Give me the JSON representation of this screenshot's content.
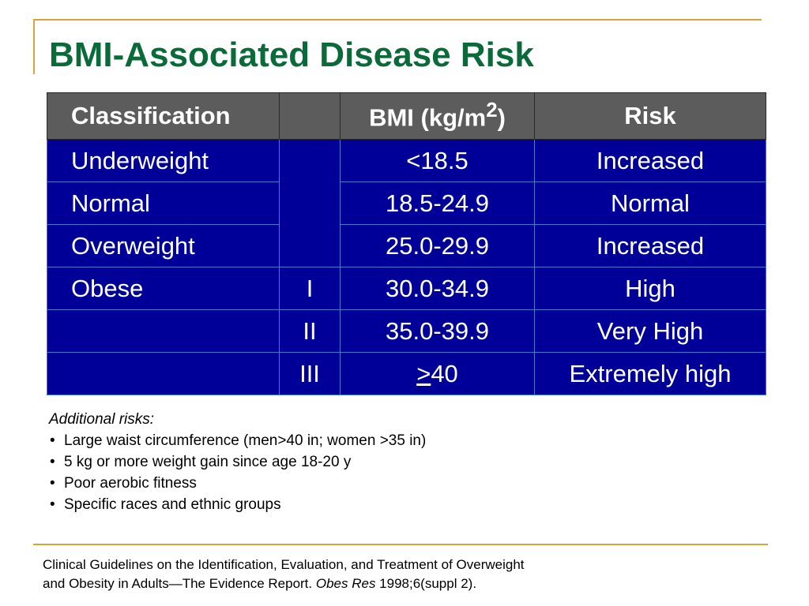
{
  "title": "BMI-Associated Disease Risk",
  "table": {
    "headers": {
      "classification": "Classification",
      "class": "",
      "bmi_prefix": "BMI (kg/m",
      "bmi_sup": "2",
      "bmi_suffix": ")",
      "risk": "Risk"
    },
    "rows": [
      {
        "classification": "Underweight",
        "class": "",
        "bmi": "<18.5",
        "risk": "Increased"
      },
      {
        "classification": "Normal",
        "class": "",
        "bmi": "18.5-24.9",
        "risk": "Normal"
      },
      {
        "classification": "Overweight",
        "class": "",
        "bmi": "25.0-29.9",
        "risk": "Increased"
      },
      {
        "classification": "Obese",
        "class": "I",
        "bmi": "30.0-34.9",
        "risk": "High"
      },
      {
        "classification": "",
        "class": "II",
        "bmi": "35.0-39.9",
        "risk": "Very High"
      },
      {
        "classification": "",
        "class": "III",
        "bmi_underlined": ">",
        "bmi_rest": "40",
        "risk": "Extremely high"
      }
    ]
  },
  "additional": {
    "heading": "Additional risks:",
    "items": [
      "Large waist circumference (men>40 in; women >35 in)",
      "5 kg or more weight gain since age 18-20 y",
      "Poor aerobic fitness",
      "Specific races and ethnic groups"
    ]
  },
  "citation": {
    "line1": "Clinical Guidelines on the Identification, Evaluation, and Treatment of Overweight",
    "line2_prefix": "and Obesity in Adults—The Evidence Report. ",
    "journal": "Obes Res",
    "line2_suffix": " 1998;6(suppl 2)."
  },
  "colors": {
    "title": "#0b6a3a",
    "header_bg": "#5c5c5c",
    "body_bg": "#000099",
    "rule": "#d9a53a"
  }
}
